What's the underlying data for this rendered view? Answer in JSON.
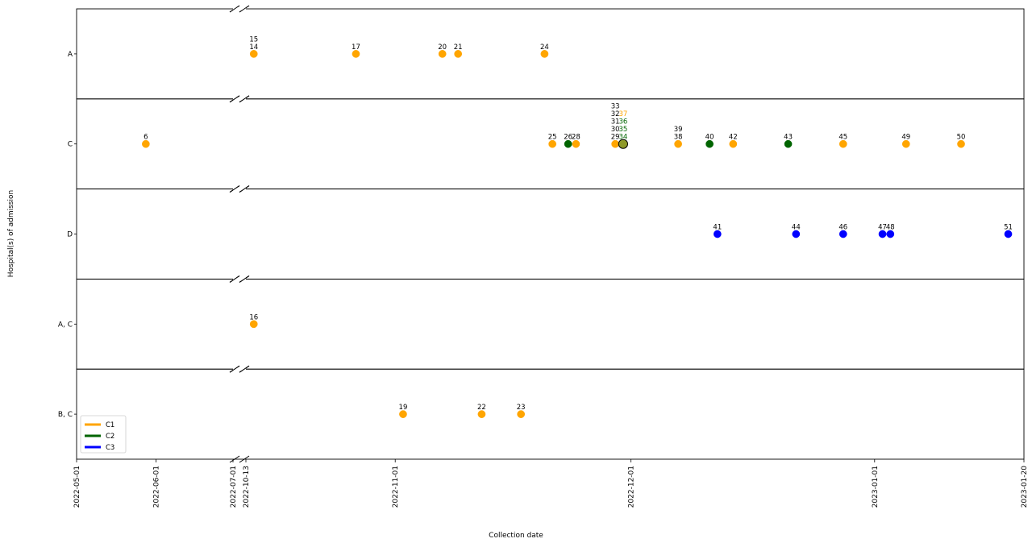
{
  "chart_data": {
    "type": "scatter",
    "title": "",
    "xlabel": "Collection date",
    "ylabel": "Hospital(s) of admission",
    "broken_x_axis": true,
    "grid": false,
    "legend_position": "bottom-left",
    "colors": {
      "C1": "#FFA500",
      "C2": "#006400",
      "C3": "#0000FF"
    },
    "categories": [
      "A",
      "C",
      "D",
      "A, C",
      "B, C"
    ],
    "x_ticks": [
      "2022-05-01",
      "2022-06-01",
      "2022-07-01",
      "2022-10-13",
      "2022-11-01",
      "2022-12-01",
      "2023-01-01",
      "2023-01-20"
    ],
    "legend": [
      {
        "name": "C1",
        "color": "#FFA500"
      },
      {
        "name": "C2",
        "color": "#006400"
      },
      {
        "name": "C3",
        "color": "#0000FF"
      }
    ],
    "points": [
      {
        "id": "6",
        "cat": "C",
        "date": "2022-05-28",
        "series": "C1"
      },
      {
        "id": "14",
        "cat": "A",
        "date": "2022-10-14",
        "series": "C1"
      },
      {
        "id": "15",
        "cat": "A",
        "date": "2022-10-14",
        "series": "C1"
      },
      {
        "id": "16",
        "cat": "A, C",
        "date": "2022-10-14",
        "series": "C1"
      },
      {
        "id": "17",
        "cat": "A",
        "date": "2022-10-27",
        "series": "C1"
      },
      {
        "id": "19",
        "cat": "B, C",
        "date": "2022-11-02",
        "series": "C1"
      },
      {
        "id": "20",
        "cat": "A",
        "date": "2022-11-07",
        "series": "C1"
      },
      {
        "id": "21",
        "cat": "A",
        "date": "2022-11-09",
        "series": "C1"
      },
      {
        "id": "22",
        "cat": "B, C",
        "date": "2022-11-12",
        "series": "C1"
      },
      {
        "id": "23",
        "cat": "B, C",
        "date": "2022-11-17",
        "series": "C1"
      },
      {
        "id": "24",
        "cat": "A",
        "date": "2022-11-20",
        "series": "C1"
      },
      {
        "id": "25",
        "cat": "C",
        "date": "2022-11-21",
        "series": "C1"
      },
      {
        "id": "26",
        "cat": "C",
        "date": "2022-11-23",
        "series": "C2"
      },
      {
        "id": "28",
        "cat": "C",
        "date": "2022-11-24",
        "series": "C1"
      },
      {
        "id": "29",
        "cat": "C",
        "date": "2022-11-29",
        "series": "C1"
      },
      {
        "id": "30",
        "cat": "C",
        "date": "2022-11-29",
        "series": "C1"
      },
      {
        "id": "31",
        "cat": "C",
        "date": "2022-11-29",
        "series": "C1"
      },
      {
        "id": "32",
        "cat": "C",
        "date": "2022-11-29",
        "series": "C1"
      },
      {
        "id": "33",
        "cat": "C",
        "date": "2022-11-29",
        "series": "C1"
      },
      {
        "id": "34",
        "cat": "C",
        "date": "2022-11-30",
        "series": "C2"
      },
      {
        "id": "35",
        "cat": "C",
        "date": "2022-11-30",
        "series": "C2"
      },
      {
        "id": "36",
        "cat": "C",
        "date": "2022-11-30",
        "series": "C2"
      },
      {
        "id": "37",
        "cat": "C",
        "date": "2022-11-30",
        "series": "C1"
      },
      {
        "id": "38",
        "cat": "C",
        "date": "2022-12-07",
        "series": "C1"
      },
      {
        "id": "39",
        "cat": "C",
        "date": "2022-12-07",
        "series": "C1"
      },
      {
        "id": "40",
        "cat": "C",
        "date": "2022-12-11",
        "series": "C2"
      },
      {
        "id": "41",
        "cat": "D",
        "date": "2022-12-12",
        "series": "C3"
      },
      {
        "id": "42",
        "cat": "C",
        "date": "2022-12-14",
        "series": "C1"
      },
      {
        "id": "43",
        "cat": "C",
        "date": "2022-12-21",
        "series": "C2"
      },
      {
        "id": "44",
        "cat": "D",
        "date": "2022-12-22",
        "series": "C3"
      },
      {
        "id": "45",
        "cat": "C",
        "date": "2022-12-28",
        "series": "C1"
      },
      {
        "id": "46",
        "cat": "D",
        "date": "2022-12-28",
        "series": "C3"
      },
      {
        "id": "47",
        "cat": "D",
        "date": "2023-01-02",
        "series": "C3"
      },
      {
        "id": "48",
        "cat": "D",
        "date": "2023-01-03",
        "series": "C3"
      },
      {
        "id": "49",
        "cat": "C",
        "date": "2023-01-05",
        "series": "C1"
      },
      {
        "id": "50",
        "cat": "C",
        "date": "2023-01-12",
        "series": "C1"
      },
      {
        "id": "51",
        "cat": "D",
        "date": "2023-01-18",
        "series": "C3"
      }
    ]
  }
}
